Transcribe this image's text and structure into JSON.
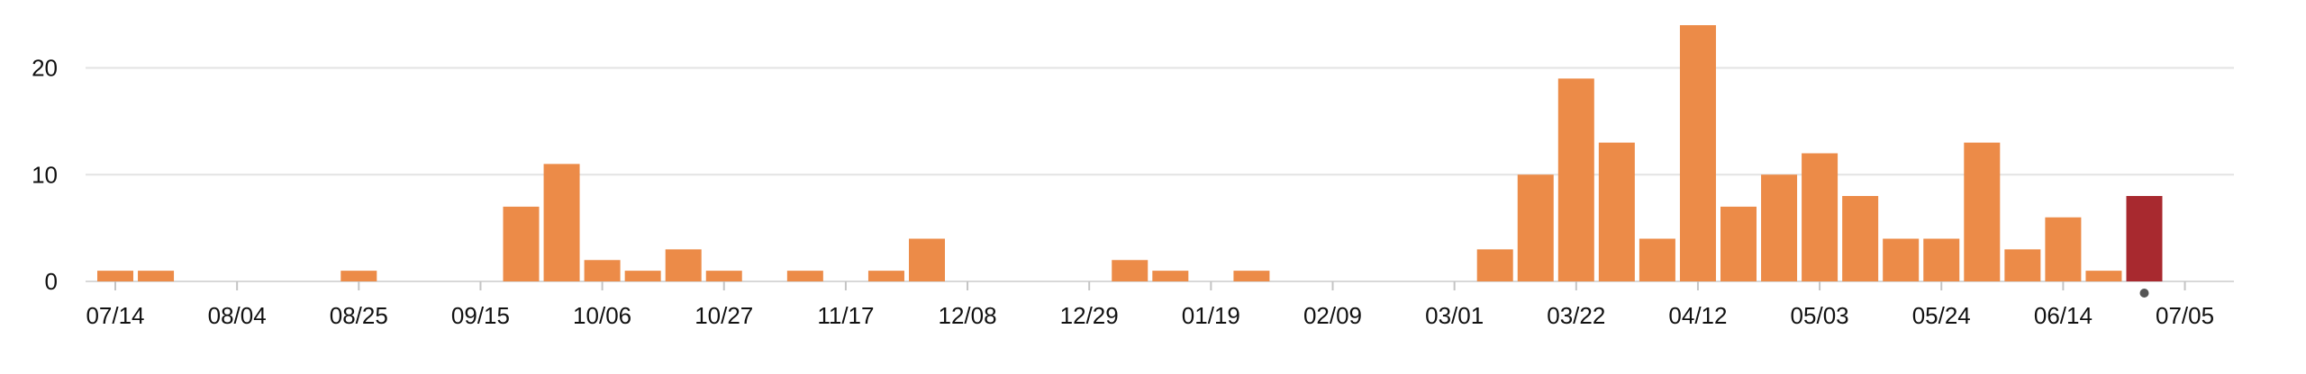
{
  "chart_data": {
    "type": "bar",
    "title": "",
    "xlabel": "",
    "ylabel": "",
    "ylim": [
      0,
      24
    ],
    "yticks": [
      0,
      10,
      20
    ],
    "grid": true,
    "legend": "none",
    "x_tick_labels": [
      "07/14",
      "08/04",
      "08/25",
      "09/15",
      "10/06",
      "10/27",
      "11/17",
      "12/08",
      "12/29",
      "01/19",
      "02/09",
      "03/01",
      "03/22",
      "04/12",
      "05/03",
      "05/24",
      "06/14",
      "07/05"
    ],
    "categories": [
      "07/14",
      "07/21",
      "07/28",
      "08/04",
      "08/11",
      "08/18",
      "08/25",
      "09/01",
      "09/08",
      "09/15",
      "09/22",
      "09/29",
      "10/06",
      "10/13",
      "10/20",
      "10/27",
      "11/03",
      "11/10",
      "11/17",
      "11/24",
      "12/01",
      "12/08",
      "12/15",
      "12/22",
      "12/29",
      "01/05",
      "01/12",
      "01/19",
      "01/26",
      "02/02",
      "02/09",
      "02/16",
      "02/23",
      "03/01",
      "03/08",
      "03/15",
      "03/22",
      "03/29",
      "04/05",
      "04/12",
      "04/19",
      "04/26",
      "05/03",
      "05/10",
      "05/17",
      "05/24",
      "05/31",
      "06/07",
      "06/14",
      "06/21",
      "06/28"
    ],
    "values": [
      1,
      1,
      0,
      0,
      0,
      0,
      1,
      0,
      0,
      0,
      7,
      11,
      2,
      1,
      3,
      1,
      0,
      1,
      0,
      1,
      4,
      0,
      0,
      0,
      0,
      2,
      1,
      0,
      1,
      0,
      0,
      0,
      0,
      0,
      3,
      10,
      19,
      13,
      4,
      24,
      7,
      10,
      12,
      8,
      4,
      4,
      13,
      3,
      6,
      1,
      8
    ],
    "highlight_index": 50,
    "colors": {
      "bar": "#ec8b48",
      "highlight": "#a8292f",
      "marker": "#555555"
    }
  }
}
